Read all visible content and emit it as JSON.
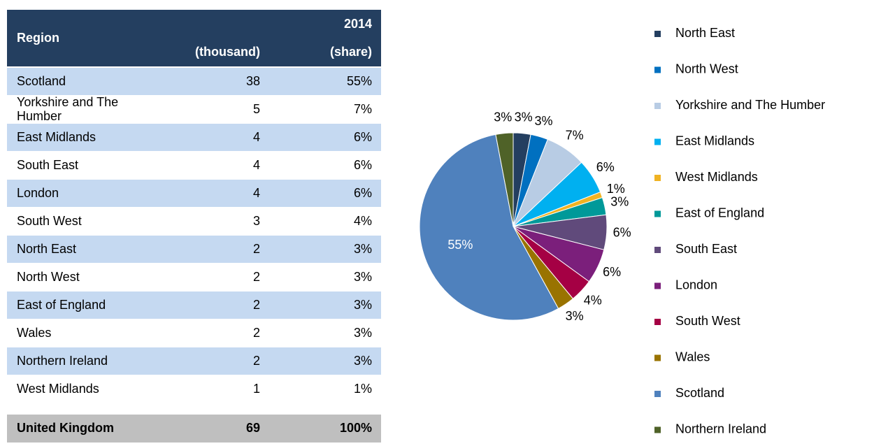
{
  "table": {
    "columns": [
      "Region",
      "(thousand)",
      "(share)"
    ],
    "year": "2014",
    "rows": [
      [
        "Scotland",
        38,
        "55%"
      ],
      [
        "Yorkshire and The Humber",
        5,
        "7%"
      ],
      [
        "East Midlands",
        4,
        "6%"
      ],
      [
        "South East",
        4,
        "6%"
      ],
      [
        "London",
        4,
        "6%"
      ],
      [
        "South West",
        3,
        "4%"
      ],
      [
        "North East",
        2,
        "3%"
      ],
      [
        "North West",
        2,
        "3%"
      ],
      [
        "East of England",
        2,
        "3%"
      ],
      [
        "Wales",
        2,
        "3%"
      ],
      [
        "Northern Ireland",
        2,
        "3%"
      ],
      [
        "West Midlands",
        1,
        "1%"
      ]
    ],
    "total": [
      "United Kingdom",
      69,
      "100%"
    ]
  },
  "chart_data": {
    "type": "pie",
    "categories": [
      "North East",
      "North West",
      "Yorkshire and The Humber",
      "East Midlands",
      "West Midlands",
      "East of England",
      "South East",
      "London",
      "South West",
      "Wales",
      "Scotland",
      "Northern Ireland"
    ],
    "values": [
      3,
      3,
      7,
      6,
      1,
      3,
      6,
      6,
      4,
      3,
      55,
      3
    ],
    "value_labels": [
      "3%",
      "3%",
      "7%",
      "6%",
      "1%",
      "3%",
      "6%",
      "6%",
      "4%",
      "3%",
      "55%",
      "3%"
    ],
    "colors": [
      "#243f60",
      "#0070c0",
      "#b8cce4",
      "#00b0f0",
      "#f0b323",
      "#009999",
      "#604a7b",
      "#7b1f7b",
      "#a50044",
      "#997300",
      "#4f81bd",
      "#4f6228"
    ],
    "legend": "right"
  }
}
